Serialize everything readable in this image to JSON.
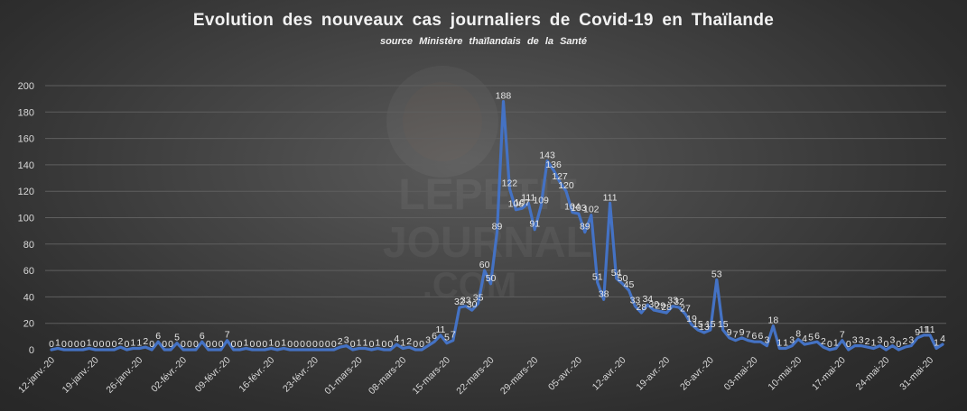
{
  "header": {
    "title": "Evolution  des nouveaux  cas journaliers  de Covid-19  en Thaïlande",
    "subtitle": "source  Ministère  thaïlandais  de la Santé"
  },
  "watermark": {
    "line1": "LEPETIT",
    "line2": "JOURNAL",
    "line3": ".COM"
  },
  "colors": {
    "line": "#4472c4",
    "grid": "#5f5f5f",
    "text": "#d9d9d9"
  },
  "chart_data": {
    "type": "line",
    "title": "Evolution des nouveaux cas journaliers de Covid-19 en Thaïlande",
    "subtitle": "source Ministère thaïlandais de la Santé",
    "xlabel": "",
    "ylabel": "",
    "ylim": [
      0,
      200
    ],
    "yticks": [
      0,
      20,
      40,
      60,
      80,
      100,
      120,
      140,
      160,
      180,
      200
    ],
    "grid": true,
    "legend": "none",
    "start_date": "12-janv.-20",
    "end_date": "31-mai-20",
    "xtick_labels": [
      "12-janv.-20",
      "19-janv.-20",
      "26-janv.-20",
      "02-févr.-20",
      "09-févr.-20",
      "16-févr.-20",
      "23-févr.-20",
      "01-mars-20",
      "08-mars-20",
      "15-mars-20",
      "22-mars-20",
      "29-mars-20",
      "05-avr.-20",
      "12-avr.-20",
      "19-avr.-20",
      "26-avr.-20",
      "03-mai-20",
      "10-mai-20",
      "17-mai-20",
      "24-mai-20",
      "31-mai-20"
    ],
    "series": [
      {
        "name": "Nouveaux cas journaliers",
        "values": [
          0,
          1,
          0,
          0,
          0,
          0,
          1,
          0,
          0,
          0,
          0,
          2,
          0,
          1,
          1,
          2,
          0,
          6,
          0,
          0,
          5,
          0,
          0,
          0,
          6,
          0,
          0,
          0,
          7,
          0,
          0,
          1,
          0,
          0,
          0,
          1,
          0,
          1,
          0,
          0,
          0,
          0,
          0,
          0,
          0,
          0,
          2,
          3,
          0,
          1,
          1,
          0,
          1,
          0,
          0,
          4,
          1,
          2,
          0,
          0,
          3,
          6,
          11,
          5,
          7,
          32,
          33,
          30,
          35,
          60,
          50,
          89,
          188,
          122,
          106,
          107,
          111,
          91,
          109,
          143,
          136,
          127,
          120,
          104,
          103,
          89,
          102,
          51,
          38,
          111,
          54,
          50,
          45,
          33,
          28,
          34,
          30,
          29,
          28,
          33,
          32,
          27,
          19,
          15,
          13,
          15,
          53,
          15,
          9,
          7,
          9,
          7,
          6,
          6,
          3,
          18,
          1,
          1,
          3,
          8,
          4,
          5,
          6,
          2,
          0,
          1,
          7,
          0,
          3,
          3,
          2,
          1,
          3,
          0,
          3,
          0,
          2,
          3,
          9,
          11,
          11,
          1,
          4
        ]
      }
    ]
  }
}
